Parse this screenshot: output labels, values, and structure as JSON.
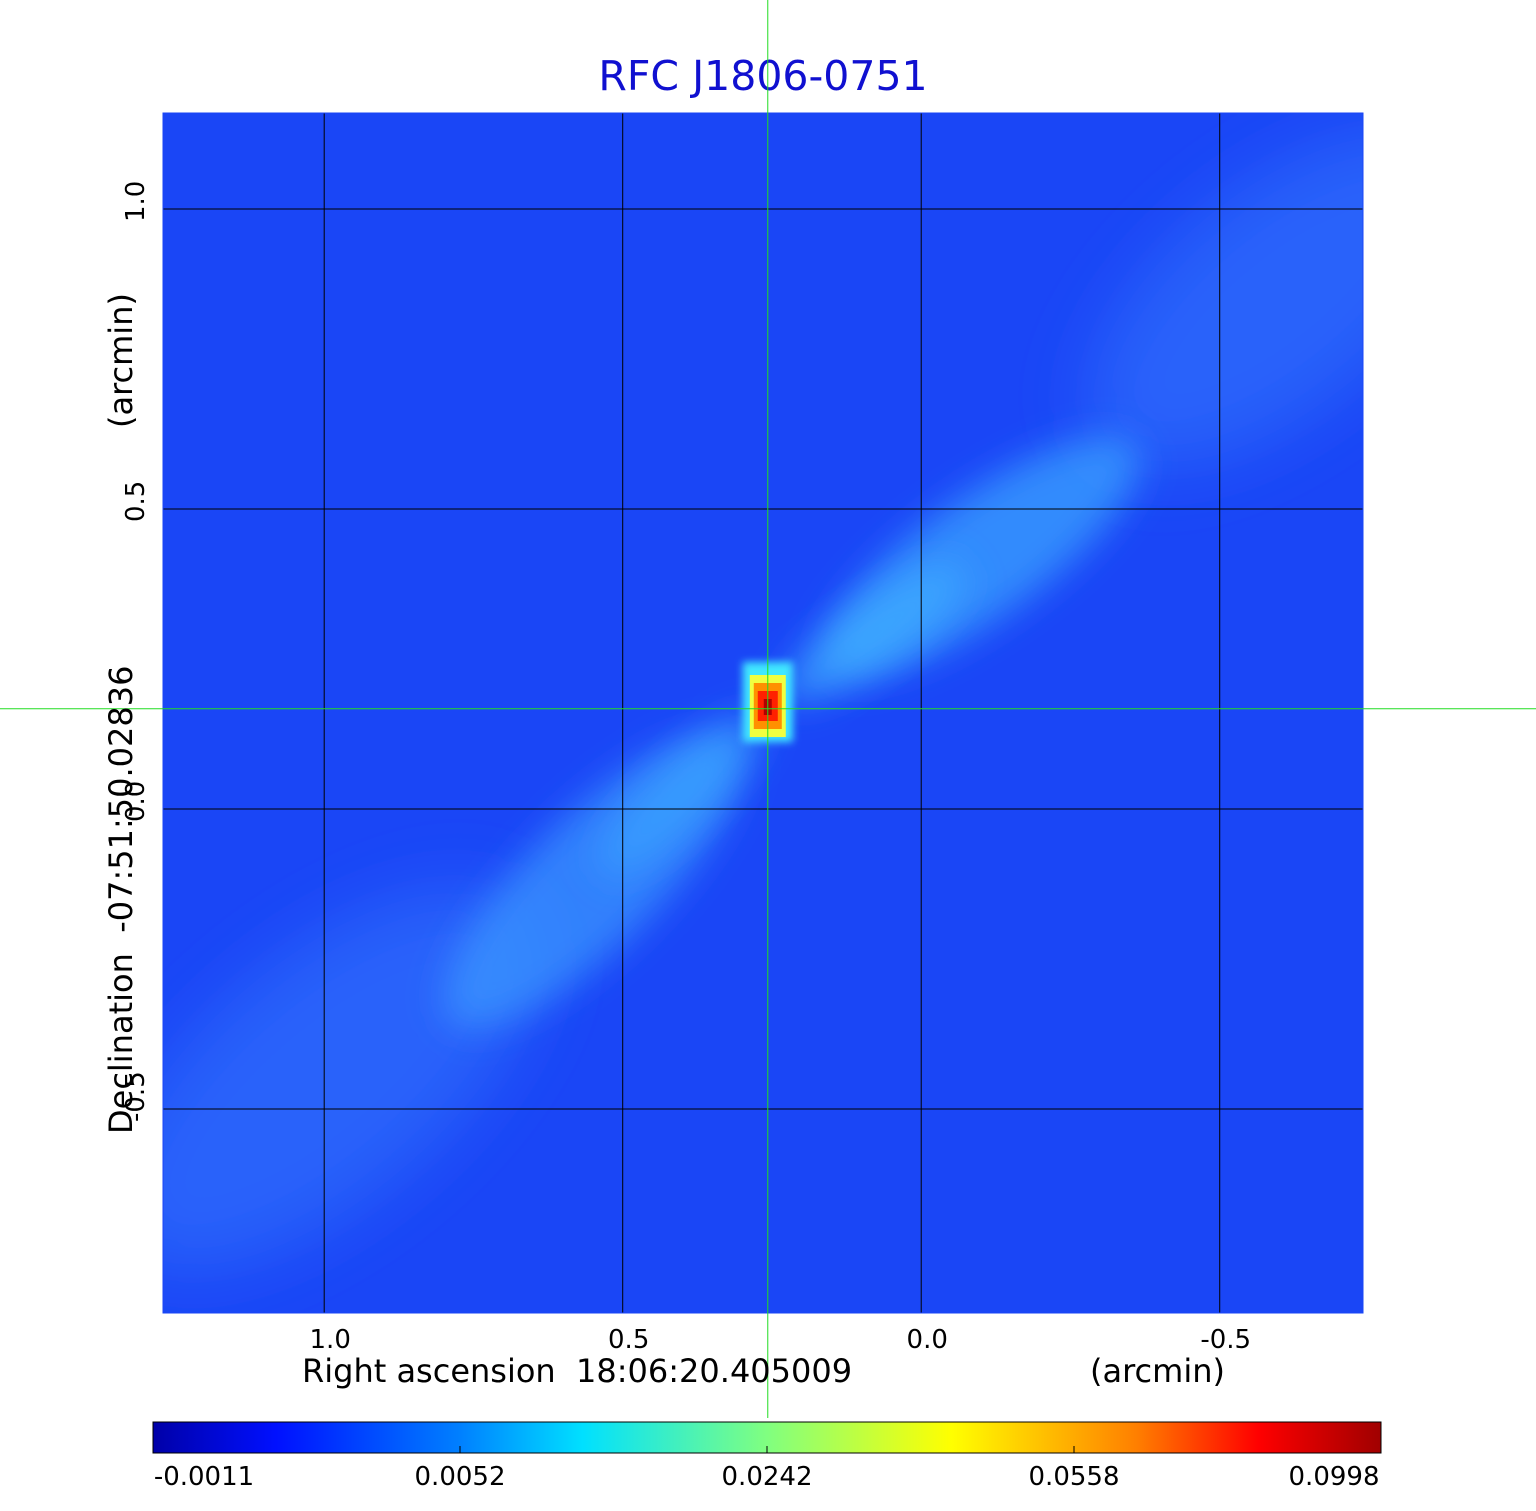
{
  "chart_data": {
    "type": "heatmap",
    "title": "RFC J1806-0751",
    "xlabel": "Right ascension  18:06:20.405009",
    "xunit": "(arcmin)",
    "ylabel": "Declination  -07:51:50.02836",
    "yunit": "(arcmin)",
    "xlim": [
      1.27,
      -0.74
    ],
    "ylim": [
      -0.84,
      1.16
    ],
    "x_ticks": [
      1.0,
      0.5,
      0.0,
      -0.5
    ],
    "x_tick_labels": [
      "1.0",
      "0.5",
      "0.0",
      "-0.5"
    ],
    "y_ticks": [
      1.0,
      0.5,
      0.0,
      -0.5
    ],
    "y_tick_labels": [
      "1.0",
      "0.5",
      "0.0",
      "-0.5"
    ],
    "grid": true,
    "crosshair": {
      "x": 0.257,
      "y": 0.167
    },
    "peak": {
      "x": 0.257,
      "y": 0.17,
      "value": 0.0998
    },
    "jet": {
      "from": [
        0.257,
        0.167
      ],
      "toward_nw": [
        -0.1,
        0.42
      ],
      "far_nw": [
        -0.6,
        0.85
      ],
      "toward_se": [
        0.55,
        -0.12
      ],
      "far_se": [
        1.0,
        -0.45
      ]
    },
    "colorbar": {
      "colormap": "jet",
      "ticks": [
        "-0.0011",
        "0.0052",
        "0.0242",
        "0.0558",
        "0.0998"
      ],
      "range": [
        -0.0011,
        0.0998
      ]
    },
    "colors": {
      "title": "#1010d0",
      "crosshair": "#22dd22",
      "grid": "#000000",
      "background": "#1848ff"
    }
  }
}
